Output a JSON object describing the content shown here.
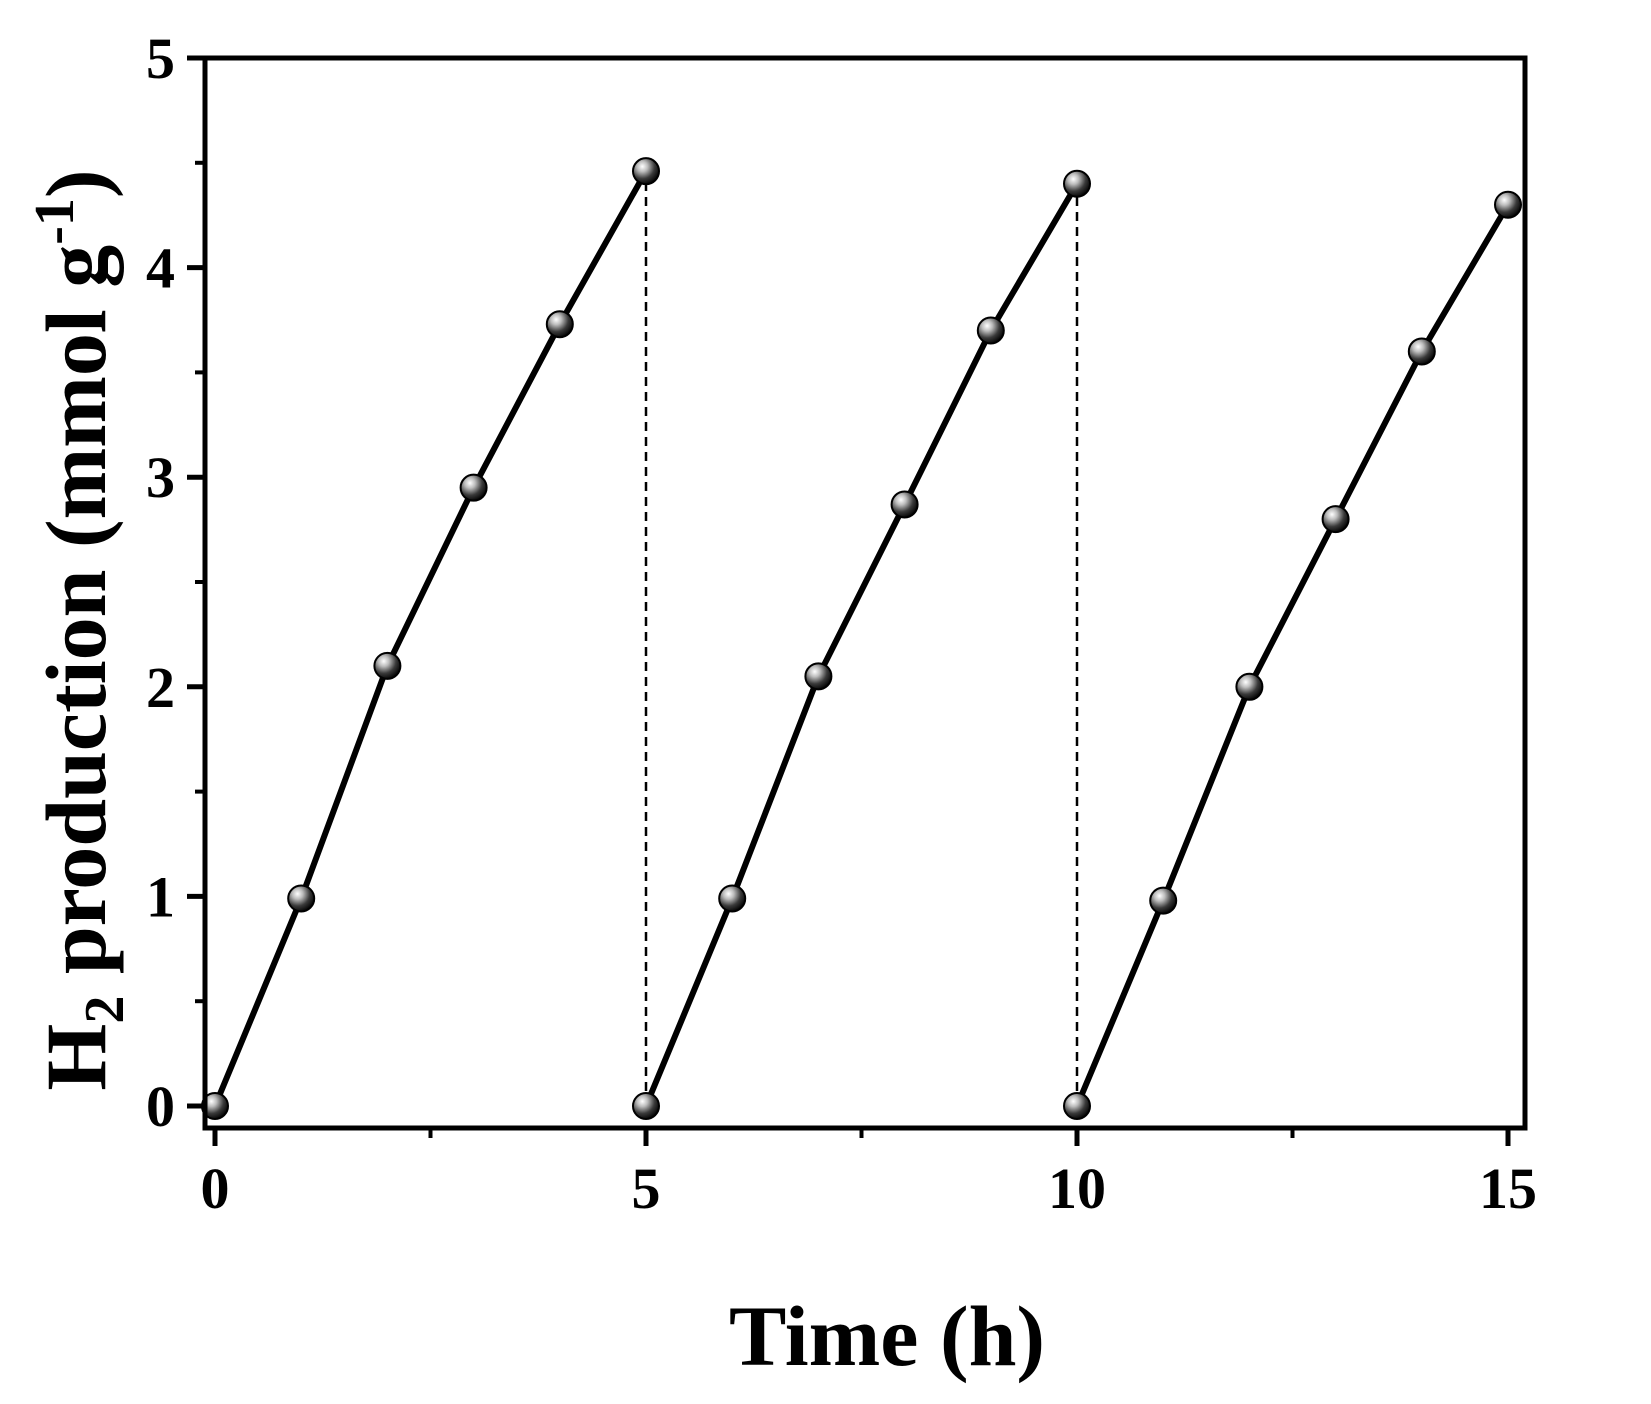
{
  "chart_data": {
    "type": "line",
    "title": "",
    "xlabel": "Time (h)",
    "ylabel": {
      "main": "H",
      "subscript": "2",
      "middle": " production (mmol g",
      "superscript": "-1",
      "end": ")"
    },
    "xlim": [
      0,
      15
    ],
    "ylim": [
      0,
      5
    ],
    "xticks": [
      0,
      5,
      10,
      15
    ],
    "yticks": [
      0,
      1,
      2,
      3,
      4,
      5
    ],
    "xtick_labels": [
      "0",
      "5",
      "10",
      "15"
    ],
    "ytick_labels": [
      "0",
      "1",
      "2",
      "3",
      "4",
      "5"
    ],
    "grid": false,
    "series": [
      {
        "x": [
          0,
          1,
          2,
          3,
          4,
          5
        ],
        "y": [
          0,
          0.99,
          2.1,
          2.95,
          3.73,
          4.46
        ]
      },
      {
        "x": [
          5,
          6,
          7,
          8,
          9,
          10
        ],
        "y": [
          0,
          0.99,
          2.05,
          2.87,
          3.7,
          4.4
        ]
      },
      {
        "x": [
          10,
          11,
          12,
          13,
          14,
          15
        ],
        "y": [
          0,
          0.98,
          2.0,
          2.8,
          3.6,
          4.3
        ]
      }
    ],
    "dashed_connectors": [
      {
        "x": 5,
        "y_from": 0,
        "y_to": 4.46
      },
      {
        "x": 10,
        "y_from": 0,
        "y_to": 4.4
      }
    ],
    "line_color": "#000000",
    "marker_color": "#000000"
  }
}
